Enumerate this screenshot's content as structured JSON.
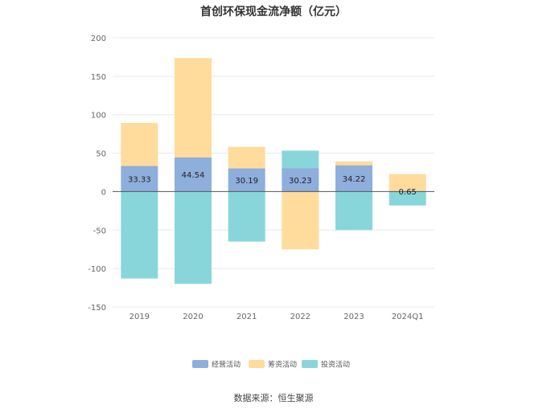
{
  "chart_data": {
    "type": "bar",
    "stacked": true,
    "title": "首创环保现金流净额（亿元）",
    "categories": [
      "2019",
      "2020",
      "2021",
      "2022",
      "2023",
      "2024Q1"
    ],
    "series": [
      {
        "name": "经营活动",
        "color": "#8eaedc",
        "values": [
          33.33,
          44.54,
          30.19,
          30.23,
          34.22,
          0.65
        ],
        "show_labels": true
      },
      {
        "name": "筹资活动",
        "color": "#ffdb9c",
        "values": [
          56,
          129,
          28,
          -75,
          5,
          22
        ],
        "show_labels": false
      },
      {
        "name": "投资活动",
        "color": "#88d6da",
        "values": [
          -113,
          -120,
          -65,
          23,
          -50,
          -18
        ],
        "show_labels": false
      }
    ],
    "ylim": [
      -150,
      200
    ],
    "yticks": [
      200,
      150,
      100,
      50,
      0,
      -50,
      -100,
      -150
    ],
    "grid": true,
    "legend_position": "bottom-center"
  },
  "source": "数据来源：恒生聚源"
}
